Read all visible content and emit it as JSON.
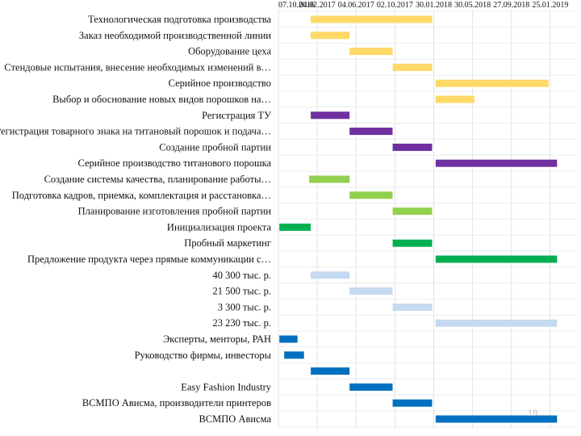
{
  "chart_data": {
    "type": "gantt",
    "title": "",
    "x_ticks": [
      "07.10.2016",
      "04.02.2017",
      "04.06.2017",
      "02.10.2017",
      "30.01.2018",
      "30.05.2018",
      "27.09.2018",
      "25.01.2019"
    ],
    "x_range": [
      "2016-10-07",
      "2019-04-15"
    ],
    "grid": true,
    "palette": {
      "yellow": "#ffd966",
      "purple": "#7030a0",
      "lightgreen": "#92d050",
      "green": "#00b050",
      "lightblue": "#c5d9f1",
      "blue": "#0070c0"
    },
    "tasks": [
      {
        "label": "Технологическая подготовка производства",
        "start": "2017-01-15",
        "end": "2018-01-25",
        "color": "yellow"
      },
      {
        "label": "Заказ необходимой производственной линии",
        "start": "2017-01-15",
        "end": "2017-05-15",
        "color": "yellow"
      },
      {
        "label": "Оборудование цеха",
        "start": "2017-05-15",
        "end": "2017-09-25",
        "color": "yellow"
      },
      {
        "label": "Стендовые испытания, внесение необходимых изменений в…",
        "start": "2017-09-25",
        "end": "2018-01-25",
        "color": "yellow"
      },
      {
        "label": "Серийное производство",
        "start": "2018-02-05",
        "end": "2019-01-20",
        "color": "yellow"
      },
      {
        "label": "Выбор и обоснование новых видов порошков на…",
        "start": "2018-02-05",
        "end": "2018-06-05",
        "color": "yellow"
      },
      {
        "label": "Регистрация ТУ",
        "start": "2017-01-15",
        "end": "2017-05-15",
        "color": "purple"
      },
      {
        "label": "Регистрация товарного знака на титановый порошок и подача…",
        "start": "2017-05-15",
        "end": "2017-09-25",
        "color": "purple"
      },
      {
        "label": "Создание пробной партии",
        "start": "2017-09-25",
        "end": "2018-01-25",
        "color": "purple"
      },
      {
        "label": "Серийное производство титанового порошка",
        "start": "2018-02-05",
        "end": "2019-02-15",
        "color": "purple"
      },
      {
        "label": "Создание системы качества, планирование работы…",
        "start": "2017-01-10",
        "end": "2017-05-15",
        "color": "lightgreen"
      },
      {
        "label": "Подготовка кадров, приемка, комплектация и расстановка…",
        "start": "2017-05-15",
        "end": "2017-09-25",
        "color": "lightgreen"
      },
      {
        "label": "Планирование изготовления пробной партии",
        "start": "2017-09-25",
        "end": "2018-01-25",
        "color": "lightgreen"
      },
      {
        "label": "Инициализация проекта",
        "start": "2016-10-10",
        "end": "2017-01-15",
        "color": "green"
      },
      {
        "label": "Пробный маркетинг",
        "start": "2017-09-25",
        "end": "2018-01-25",
        "color": "green"
      },
      {
        "label": "Предложение продукта через прямые коммуникации с…",
        "start": "2018-02-05",
        "end": "2019-02-15",
        "color": "green"
      },
      {
        "label": "40 300 тыс. р.",
        "start": "2017-01-15",
        "end": "2017-05-15",
        "color": "lightblue"
      },
      {
        "label": "21 500 тыс. р.",
        "start": "2017-05-15",
        "end": "2017-09-25",
        "color": "lightblue"
      },
      {
        "label": "3 300 тыс. р.",
        "start": "2017-09-25",
        "end": "2018-01-25",
        "color": "lightblue"
      },
      {
        "label": "23 230 тыс. р.",
        "start": "2018-02-05",
        "end": "2019-02-15",
        "color": "lightblue"
      },
      {
        "label": "Эксперты, менторы, РАН",
        "start": "2016-10-10",
        "end": "2016-12-05",
        "color": "blue"
      },
      {
        "label": "Руководство фирмы, инвесторы",
        "start": "2016-10-25",
        "end": "2016-12-25",
        "color": "blue"
      },
      {
        "label": "",
        "start": "2017-01-15",
        "end": "2017-05-15",
        "color": "blue"
      },
      {
        "label": "Easy Fashion Industry",
        "start": "2017-05-15",
        "end": "2017-09-25",
        "color": "blue"
      },
      {
        "label": "ВСМПО Ависма, производители принтеров",
        "start": "2017-09-25",
        "end": "2018-01-25",
        "color": "blue"
      },
      {
        "label": "ВСМПО Ависма",
        "start": "2018-02-05",
        "end": "2019-02-15",
        "color": "blue"
      }
    ]
  },
  "page": {
    "number": "19"
  }
}
